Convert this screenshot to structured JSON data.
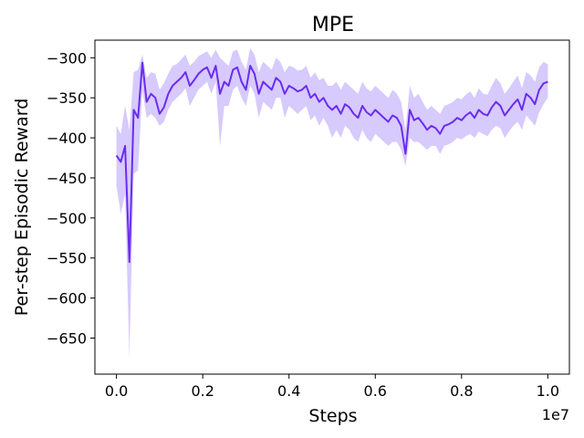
{
  "chart_data": {
    "type": "line",
    "title": "MPE",
    "xlabel": "Steps",
    "ylabel": "Per-step Episodic Reward",
    "x_offset_label": "1e7",
    "xlim": [
      -0.05,
      1.05
    ],
    "ylim": [
      -695,
      -278
    ],
    "xticks": [
      0.0,
      0.2,
      0.4,
      0.6,
      0.8,
      1.0
    ],
    "xtick_labels": [
      "0.0",
      "0.2",
      "0.4",
      "0.6",
      "0.8",
      "1.0"
    ],
    "yticks": [
      -650,
      -600,
      -550,
      -500,
      -450,
      -400,
      -350,
      -300
    ],
    "ytick_labels": [
      "−650",
      "−600",
      "−550",
      "−500",
      "−450",
      "−400",
      "−350",
      "−300"
    ],
    "grid": false,
    "colors": {
      "line": "#6a2cf0",
      "band": "#c9b8fb"
    },
    "series": [
      {
        "x": [
          0.0,
          0.01,
          0.02,
          0.03,
          0.04,
          0.05,
          0.06,
          0.07,
          0.08,
          0.09,
          0.1,
          0.11,
          0.12,
          0.13,
          0.14,
          0.15,
          0.16,
          0.17,
          0.18,
          0.19,
          0.2,
          0.21,
          0.22,
          0.23,
          0.24,
          0.25,
          0.26,
          0.27,
          0.28,
          0.29,
          0.3,
          0.31,
          0.32,
          0.33,
          0.34,
          0.35,
          0.36,
          0.37,
          0.38,
          0.39,
          0.4,
          0.41,
          0.42,
          0.43,
          0.44,
          0.45,
          0.46,
          0.47,
          0.48,
          0.49,
          0.5,
          0.51,
          0.52,
          0.53,
          0.54,
          0.55,
          0.56,
          0.57,
          0.58,
          0.59,
          0.6,
          0.61,
          0.62,
          0.63,
          0.64,
          0.65,
          0.66,
          0.67,
          0.68,
          0.69,
          0.7,
          0.71,
          0.72,
          0.73,
          0.74,
          0.75,
          0.76,
          0.77,
          0.78,
          0.79,
          0.8,
          0.81,
          0.82,
          0.83,
          0.84,
          0.85,
          0.86,
          0.87,
          0.88,
          0.89,
          0.9,
          0.91,
          0.92,
          0.93,
          0.94,
          0.95,
          0.96,
          0.97,
          0.98,
          0.99,
          1.0
        ],
        "mean": [
          -422,
          -430,
          -410,
          -555,
          -365,
          -375,
          -306,
          -355,
          -345,
          -350,
          -370,
          -362,
          -345,
          -335,
          -330,
          -325,
          -318,
          -335,
          -328,
          -320,
          -315,
          -312,
          -325,
          -310,
          -345,
          -330,
          -335,
          -315,
          -312,
          -330,
          -340,
          -310,
          -320,
          -345,
          -330,
          -335,
          -340,
          -325,
          -330,
          -345,
          -335,
          -338,
          -342,
          -340,
          -335,
          -350,
          -345,
          -355,
          -350,
          -360,
          -365,
          -360,
          -370,
          -358,
          -362,
          -370,
          -375,
          -360,
          -368,
          -372,
          -365,
          -370,
          -375,
          -380,
          -372,
          -375,
          -385,
          -420,
          -365,
          -378,
          -375,
          -382,
          -390,
          -385,
          -388,
          -395,
          -385,
          -383,
          -380,
          -375,
          -378,
          -372,
          -368,
          -375,
          -365,
          -370,
          -372,
          -362,
          -355,
          -360,
          -372,
          -365,
          -358,
          -352,
          -365,
          -345,
          -350,
          -358,
          -340,
          -332,
          -330
        ],
        "lower": [
          -460,
          -495,
          -470,
          -675,
          -445,
          -440,
          -340,
          -375,
          -370,
          -375,
          -385,
          -380,
          -365,
          -355,
          -350,
          -345,
          -338,
          -360,
          -350,
          -340,
          -335,
          -330,
          -345,
          -330,
          -410,
          -360,
          -360,
          -340,
          -335,
          -350,
          -360,
          -335,
          -345,
          -375,
          -355,
          -360,
          -365,
          -350,
          -350,
          -375,
          -360,
          -365,
          -370,
          -365,
          -360,
          -378,
          -372,
          -385,
          -375,
          -385,
          -400,
          -390,
          -400,
          -385,
          -390,
          -400,
          -405,
          -390,
          -400,
          -405,
          -395,
          -400,
          -405,
          -410,
          -405,
          -405,
          -415,
          -435,
          -400,
          -405,
          -405,
          -410,
          -415,
          -410,
          -410,
          -420,
          -410,
          -408,
          -405,
          -400,
          -402,
          -398,
          -395,
          -400,
          -392,
          -395,
          -398,
          -390,
          -385,
          -388,
          -400,
          -392,
          -385,
          -380,
          -390,
          -372,
          -378,
          -385,
          -368,
          -358,
          -350
        ],
        "upper": [
          -385,
          -395,
          -360,
          -390,
          -318,
          -315,
          -296,
          -325,
          -318,
          -320,
          -340,
          -332,
          -320,
          -310,
          -308,
          -302,
          -296,
          -310,
          -305,
          -298,
          -295,
          -292,
          -300,
          -290,
          -300,
          -305,
          -310,
          -292,
          -290,
          -305,
          -315,
          -288,
          -296,
          -318,
          -305,
          -310,
          -315,
          -300,
          -305,
          -318,
          -310,
          -312,
          -316,
          -315,
          -310,
          -325,
          -318,
          -328,
          -325,
          -335,
          -335,
          -330,
          -340,
          -330,
          -335,
          -340,
          -345,
          -330,
          -338,
          -342,
          -335,
          -340,
          -345,
          -350,
          -340,
          -345,
          -355,
          -390,
          -335,
          -350,
          -345,
          -355,
          -365,
          -360,
          -365,
          -370,
          -360,
          -358,
          -355,
          -350,
          -352,
          -346,
          -342,
          -350,
          -338,
          -345,
          -346,
          -335,
          -325,
          -332,
          -345,
          -338,
          -330,
          -322,
          -338,
          -318,
          -322,
          -330,
          -312,
          -305,
          -308
        ]
      }
    ]
  }
}
